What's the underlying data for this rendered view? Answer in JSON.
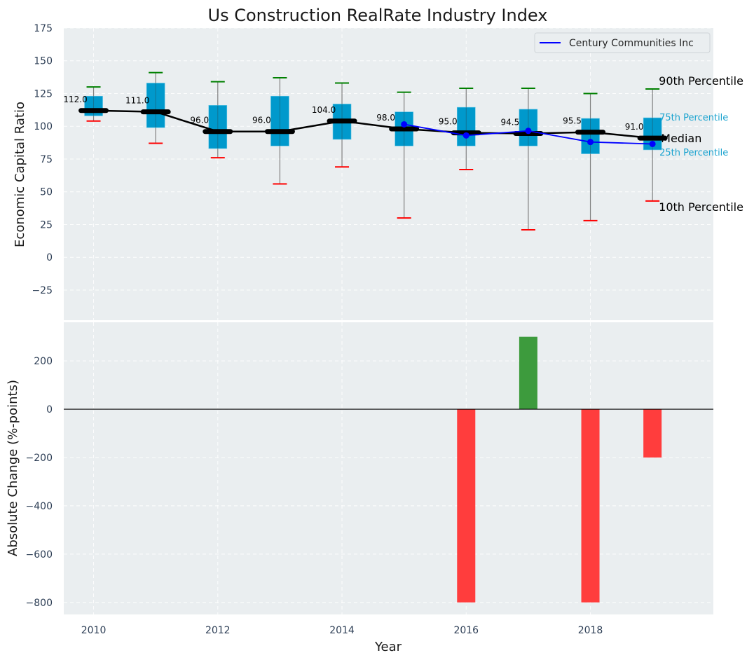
{
  "chart_data": [
    {
      "type": "box",
      "title": "Us Construction RealRate Industry Index",
      "xlabel": "",
      "ylabel": "Economic Capital Ratio",
      "ylim": [
        -48,
        175
      ],
      "yticks": [
        -25,
        0,
        25,
        50,
        75,
        100,
        125,
        150,
        175
      ],
      "ytick_labels": [
        "−25",
        "0",
        "25",
        "50",
        "75",
        "100",
        "125",
        "150",
        "175"
      ],
      "grid": true,
      "legend": {
        "placement": "top-right",
        "entries": [
          "Century Communities Inc"
        ]
      },
      "x": [
        2010,
        2011,
        2012,
        2013,
        2014,
        2015,
        2016,
        2017,
        2018,
        2019
      ],
      "boxes": {
        "p10": [
          104,
          87,
          76,
          56,
          69,
          30,
          67,
          21,
          28,
          43
        ],
        "p25": [
          108,
          99,
          83,
          85,
          90,
          85,
          85,
          85,
          79,
          82
        ],
        "median": [
          112,
          111,
          96,
          96,
          104,
          98,
          95,
          94.5,
          95.5,
          91
        ],
        "p75": [
          123,
          133,
          116,
          123,
          117,
          111,
          114.5,
          113,
          106,
          106.5
        ],
        "p90": [
          130,
          141,
          134,
          137,
          133,
          126,
          129,
          129,
          125,
          128.5
        ]
      },
      "median_labels": [
        "112.0",
        "111.0",
        "96.0",
        "96.0",
        "104.0",
        "98.0",
        "95.0",
        "94.5",
        "95.5",
        "91.0"
      ],
      "series": [
        {
          "name": "Century Communities Inc",
          "x": [
            2015,
            2016,
            2017,
            2018,
            2019
          ],
          "values": [
            101.5,
            93,
            96.5,
            88,
            86.5
          ]
        }
      ],
      "annotations": {
        "p90": "90th Percentile",
        "p75": "75th Percentile",
        "median": "Median",
        "p25": "25th Percentile",
        "p10": "10th Percentile"
      },
      "colors": {
        "box": "#0099cc",
        "median_line": "#000000",
        "p90_cap": "#008000",
        "p10_cap": "#ff0000",
        "whisker": "#808080",
        "series": "#0000ff",
        "background": "#eaeef0"
      }
    },
    {
      "type": "bar",
      "xlabel": "Year",
      "ylabel": "Absolute Change (%-points)",
      "ylim": [
        -850,
        360
      ],
      "yticks": [
        -800,
        -600,
        -400,
        -200,
        0,
        200
      ],
      "ytick_labels": [
        "−800",
        "−600",
        "−400",
        "−200",
        "0",
        "200"
      ],
      "xlim": [
        2009.52,
        2019.98
      ],
      "xticks": [
        2010,
        2012,
        2014,
        2016,
        2018
      ],
      "xtick_labels": [
        "2010",
        "2012",
        "2014",
        "2016",
        "2018"
      ],
      "grid": true,
      "categories": [
        2016,
        2017,
        2018,
        2019
      ],
      "values": [
        -800,
        300,
        -800,
        -200
      ],
      "colors": {
        "positive": "#3d9b3d",
        "negative": "#ff3d3d",
        "zero_line": "#000000"
      }
    }
  ]
}
